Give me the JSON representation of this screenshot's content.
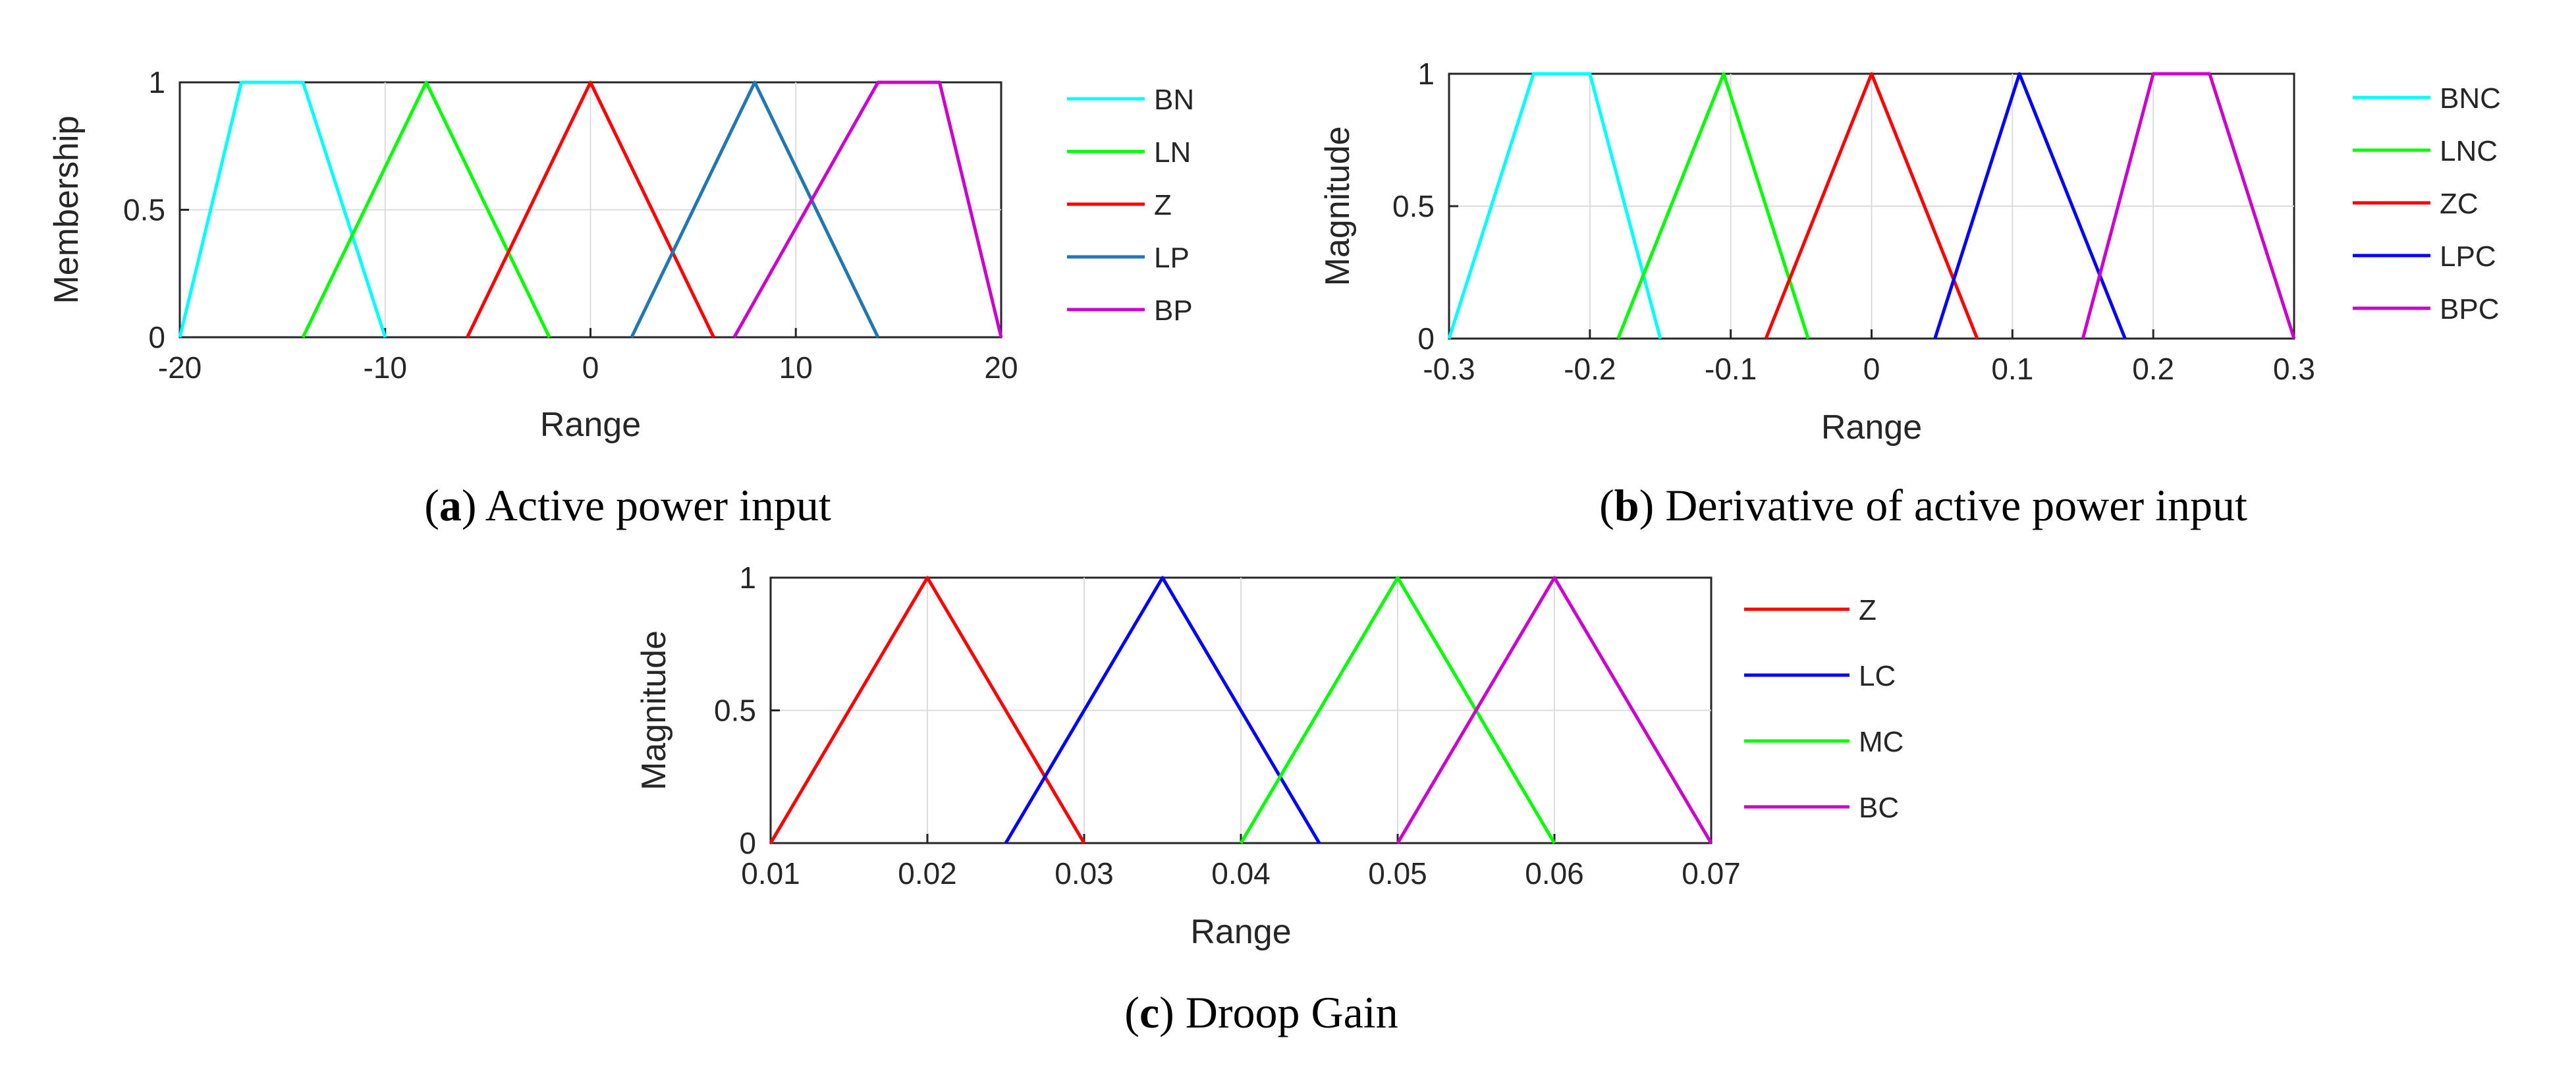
{
  "chart_data": [
    {
      "type": "line",
      "panel": "a",
      "caption_letter": "a",
      "caption_text": ") Active power input",
      "xlabel": "Range",
      "ylabel": "Membership",
      "xlim": [
        -20,
        20
      ],
      "ylim": [
        0,
        1
      ],
      "xticks": [
        -20,
        -10,
        0,
        10,
        20
      ],
      "xtick_labels": [
        "-20",
        "-10",
        "0",
        "10",
        "20"
      ],
      "yticks": [
        0,
        0.5,
        1
      ],
      "ytick_labels": [
        "0",
        "0.5",
        "1"
      ],
      "grid": true,
      "legend_position": "right",
      "series": [
        {
          "name": "BN",
          "color": "#00ffff",
          "points": [
            [
              -20,
              0
            ],
            [
              -17,
              1
            ],
            [
              -14,
              1
            ],
            [
              -10,
              0
            ]
          ]
        },
        {
          "name": "LN",
          "color": "#00ff00",
          "points": [
            [
              -14,
              0
            ],
            [
              -8,
              1
            ],
            [
              -2,
              0
            ]
          ]
        },
        {
          "name": "Z",
          "color": "#ff0000",
          "points": [
            [
              -6,
              0
            ],
            [
              0,
              1
            ],
            [
              6,
              0
            ]
          ]
        },
        {
          "name": "LP",
          "color": "#1f77b4",
          "points": [
            [
              2,
              0
            ],
            [
              8,
              1
            ],
            [
              14,
              0
            ]
          ]
        },
        {
          "name": "BP",
          "color": "#cc00cc",
          "points": [
            [
              7,
              0
            ],
            [
              14,
              1
            ],
            [
              17,
              1
            ],
            [
              20,
              0
            ]
          ]
        }
      ]
    },
    {
      "type": "line",
      "panel": "b",
      "caption_letter": "b",
      "caption_text": ") Derivative of active power input",
      "xlabel": "Range",
      "ylabel": "Magnitude",
      "xlim": [
        -0.3,
        0.3
      ],
      "ylim": [
        0,
        1
      ],
      "xticks": [
        -0.3,
        -0.2,
        -0.1,
        0,
        0.1,
        0.2,
        0.3
      ],
      "xtick_labels": [
        "-0.3",
        "-0.2",
        "-0.1",
        "0",
        "0.1",
        "0.2",
        "0.3"
      ],
      "yticks": [
        0,
        0.5,
        1
      ],
      "ytick_labels": [
        "0",
        "0.5",
        "1"
      ],
      "grid": true,
      "legend_position": "right",
      "series": [
        {
          "name": "BNC",
          "color": "#00ffff",
          "points": [
            [
              -0.3,
              0
            ],
            [
              -0.24,
              1
            ],
            [
              -0.2,
              1
            ],
            [
              -0.15,
              0
            ]
          ]
        },
        {
          "name": "LNC",
          "color": "#00ff00",
          "points": [
            [
              -0.18,
              0
            ],
            [
              -0.105,
              1
            ],
            [
              -0.045,
              0
            ]
          ]
        },
        {
          "name": "ZC",
          "color": "#ff0000",
          "points": [
            [
              -0.075,
              0
            ],
            [
              0,
              1
            ],
            [
              0.075,
              0
            ]
          ]
        },
        {
          "name": "LPC",
          "color": "#0000ff",
          "points": [
            [
              0.045,
              0
            ],
            [
              0.105,
              1
            ],
            [
              0.18,
              0
            ]
          ]
        },
        {
          "name": "BPC",
          "color": "#cc00cc",
          "points": [
            [
              0.15,
              0
            ],
            [
              0.2,
              1
            ],
            [
              0.24,
              1
            ],
            [
              0.3,
              0
            ]
          ]
        }
      ]
    },
    {
      "type": "line",
      "panel": "c",
      "caption_letter": "c",
      "caption_text": ") Droop Gain",
      "xlabel": "Range",
      "ylabel": "Magnitude",
      "xlim": [
        0.01,
        0.07
      ],
      "ylim": [
        0,
        1
      ],
      "xticks": [
        0.01,
        0.02,
        0.03,
        0.04,
        0.05,
        0.06,
        0.07
      ],
      "xtick_labels": [
        "0.01",
        "0.02",
        "0.03",
        "0.04",
        "0.05",
        "0.06",
        "0.07"
      ],
      "yticks": [
        0,
        0.5,
        1
      ],
      "ytick_labels": [
        "0",
        "0.5",
        "1"
      ],
      "grid": true,
      "legend_position": "right",
      "series": [
        {
          "name": "Z",
          "color": "#ff0000",
          "points": [
            [
              0.01,
              0
            ],
            [
              0.02,
              1
            ],
            [
              0.03,
              0
            ]
          ]
        },
        {
          "name": "LC",
          "color": "#0000ff",
          "points": [
            [
              0.025,
              0
            ],
            [
              0.035,
              1
            ],
            [
              0.045,
              0
            ]
          ]
        },
        {
          "name": "MC",
          "color": "#00ff00",
          "points": [
            [
              0.04,
              0
            ],
            [
              0.05,
              1
            ],
            [
              0.06,
              0
            ]
          ]
        },
        {
          "name": "BC",
          "color": "#cc00cc",
          "points": [
            [
              0.05,
              0
            ],
            [
              0.06,
              1
            ],
            [
              0.07,
              0
            ]
          ]
        }
      ]
    }
  ]
}
